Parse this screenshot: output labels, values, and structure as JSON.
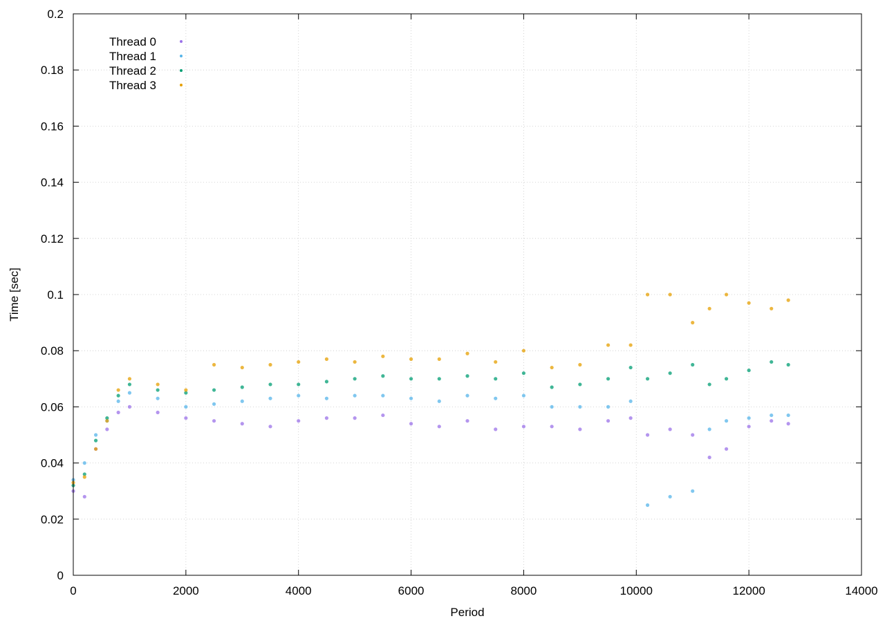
{
  "chart_data": {
    "type": "scatter",
    "title": "",
    "xlabel": "Period",
    "ylabel": "Time [sec]",
    "xlim": [
      0,
      14000
    ],
    "ylim": [
      0,
      0.2
    ],
    "x_ticks": [
      0,
      2000,
      4000,
      6000,
      8000,
      10000,
      12000,
      14000
    ],
    "y_ticks": [
      0,
      0.02,
      0.04,
      0.06,
      0.08,
      0.1,
      0.12,
      0.14,
      0.16,
      0.18,
      0.2
    ],
    "x_tick_labels": [
      "0",
      "2000",
      "4000",
      "6000",
      "8000",
      "10000",
      "12000",
      "14000"
    ],
    "y_tick_labels": [
      "0",
      "0.02",
      "0.04",
      "0.06",
      "0.08",
      "0.1",
      "0.12",
      "0.14",
      "0.16",
      "0.18",
      "0.2"
    ],
    "grid": true,
    "legend_position": "top-left",
    "series": [
      {
        "name": "Thread 0",
        "color": "#9b72e8",
        "x": [
          0,
          200,
          400,
          600,
          800,
          1000,
          1500,
          2000,
          2500,
          3000,
          3500,
          4000,
          4500,
          5000,
          5500,
          6000,
          6500,
          7000,
          7500,
          8000,
          8500,
          9000,
          9500,
          9900,
          10200,
          10600,
          11000,
          11300,
          11600,
          12000,
          12400,
          12700
        ],
        "y": [
          0.03,
          0.028,
          0.045,
          0.052,
          0.058,
          0.06,
          0.058,
          0.056,
          0.055,
          0.054,
          0.053,
          0.055,
          0.056,
          0.056,
          0.057,
          0.054,
          0.053,
          0.055,
          0.052,
          0.053,
          0.053,
          0.052,
          0.055,
          0.056,
          0.05,
          0.052,
          0.05,
          0.042,
          0.045,
          0.053,
          0.055,
          0.054
        ]
      },
      {
        "name": "Thread 1",
        "color": "#56b4e9",
        "x": [
          0,
          200,
          400,
          600,
          800,
          1000,
          1500,
          2000,
          2500,
          3000,
          3500,
          4000,
          4500,
          5000,
          5500,
          6000,
          6500,
          7000,
          7500,
          8000,
          8500,
          9000,
          9500,
          9900,
          10200,
          10600,
          11000,
          11300,
          11600,
          12000,
          12400,
          12700
        ],
        "y": [
          0.034,
          0.04,
          0.05,
          0.055,
          0.062,
          0.065,
          0.063,
          0.06,
          0.061,
          0.062,
          0.063,
          0.064,
          0.063,
          0.064,
          0.064,
          0.063,
          0.062,
          0.064,
          0.063,
          0.064,
          0.06,
          0.06,
          0.06,
          0.062,
          0.025,
          0.028,
          0.03,
          0.052,
          0.055,
          0.056,
          0.057,
          0.057
        ]
      },
      {
        "name": "Thread 2",
        "color": "#009e73",
        "x": [
          0,
          200,
          400,
          600,
          800,
          1000,
          1500,
          2000,
          2500,
          3000,
          3500,
          4000,
          4500,
          5000,
          5500,
          6000,
          6500,
          7000,
          7500,
          8000,
          8500,
          9000,
          9500,
          9900,
          10200,
          10600,
          11000,
          11300,
          11600,
          12000,
          12400,
          12700
        ],
        "y": [
          0.032,
          0.036,
          0.048,
          0.056,
          0.064,
          0.068,
          0.066,
          0.065,
          0.066,
          0.067,
          0.068,
          0.068,
          0.069,
          0.07,
          0.071,
          0.07,
          0.07,
          0.071,
          0.07,
          0.072,
          0.067,
          0.068,
          0.07,
          0.074,
          0.07,
          0.072,
          0.075,
          0.068,
          0.07,
          0.073,
          0.076,
          0.075
        ]
      },
      {
        "name": "Thread 3",
        "color": "#e69f00",
        "x": [
          0,
          200,
          400,
          600,
          800,
          1000,
          1500,
          2000,
          2500,
          3000,
          3500,
          4000,
          4500,
          5000,
          5500,
          6000,
          6500,
          7000,
          7500,
          8000,
          8500,
          9000,
          9500,
          9900,
          10200,
          10600,
          11000,
          11300,
          11600,
          12000,
          12400,
          12700
        ],
        "y": [
          0.033,
          0.035,
          0.045,
          0.055,
          0.066,
          0.07,
          0.068,
          0.066,
          0.075,
          0.074,
          0.075,
          0.076,
          0.077,
          0.076,
          0.078,
          0.077,
          0.077,
          0.079,
          0.076,
          0.08,
          0.074,
          0.075,
          0.082,
          0.082,
          0.1,
          0.1,
          0.09,
          0.095,
          0.1,
          0.097,
          0.095,
          0.098
        ]
      }
    ]
  }
}
